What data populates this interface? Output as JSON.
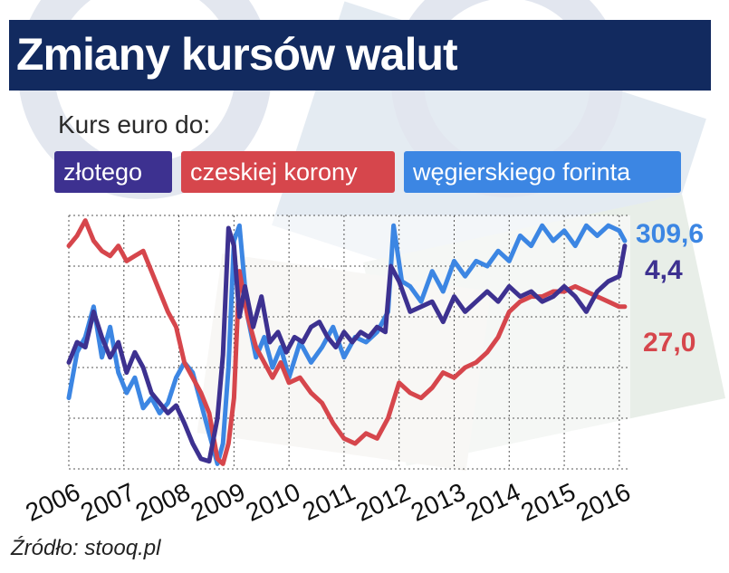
{
  "title": "Zmiany kursów walut",
  "subtitle": "Kurs euro do:",
  "source": "Źródło: stooq.pl",
  "colors": {
    "title_bg": "#122a5f",
    "pln": "#3d3190",
    "czk": "#d6464c",
    "huf": "#3c86e3",
    "grid": "#555555"
  },
  "legend": [
    {
      "key": "pln",
      "label": "złotego"
    },
    {
      "key": "czk",
      "label": "czeskiej korony"
    },
    {
      "key": "huf",
      "label": "węgierskiego forinta"
    }
  ],
  "end_labels": {
    "huf": "309,6",
    "pln": "4,4",
    "czk": "27,0"
  },
  "chart_data": {
    "type": "line",
    "x_ticks": [
      "2006",
      "2007",
      "2008",
      "2009",
      "2010",
      "2011",
      "2012",
      "2013",
      "2014",
      "2015",
      "2016"
    ],
    "xlim": [
      2006,
      2016.2
    ],
    "ylim": [
      0,
      100
    ],
    "y_axis": "no labels; relative scale, each series normalised to its own range",
    "grid": true,
    "legend_position": "top",
    "series": [
      {
        "name": "złotego",
        "color": "#3d3190",
        "end_value": "4,4",
        "x": [
          2006.0,
          2006.15,
          2006.3,
          2006.45,
          2006.6,
          2006.75,
          2006.9,
          2007.05,
          2007.2,
          2007.35,
          2007.5,
          2007.65,
          2007.8,
          2007.95,
          2008.1,
          2008.25,
          2008.4,
          2008.55,
          2008.7,
          2008.8,
          2008.9,
          2009.0,
          2009.1,
          2009.2,
          2009.35,
          2009.5,
          2009.65,
          2009.8,
          2009.95,
          2010.1,
          2010.25,
          2010.4,
          2010.55,
          2010.7,
          2010.85,
          2011.0,
          2011.15,
          2011.3,
          2011.45,
          2011.6,
          2011.75,
          2011.85,
          2012.0,
          2012.2,
          2012.4,
          2012.6,
          2012.8,
          2013.0,
          2013.2,
          2013.4,
          2013.6,
          2013.8,
          2014.0,
          2014.2,
          2014.4,
          2014.6,
          2014.8,
          2015.0,
          2015.2,
          2015.4,
          2015.6,
          2015.8,
          2016.0,
          2016.1
        ],
        "values": [
          42,
          50,
          48,
          62,
          52,
          44,
          50,
          38,
          46,
          40,
          30,
          26,
          22,
          25,
          18,
          10,
          4,
          3,
          20,
          45,
          95,
          88,
          60,
          72,
          56,
          68,
          50,
          54,
          46,
          52,
          50,
          56,
          58,
          52,
          48,
          54,
          50,
          54,
          52,
          56,
          54,
          80,
          74,
          62,
          64,
          66,
          58,
          68,
          62,
          66,
          70,
          66,
          72,
          68,
          70,
          66,
          68,
          72,
          68,
          62,
          70,
          74,
          76,
          88
        ]
      },
      {
        "name": "czeskiej korony",
        "color": "#d6464c",
        "end_value": "27,0",
        "x": [
          2006.0,
          2006.15,
          2006.3,
          2006.45,
          2006.6,
          2006.75,
          2006.9,
          2007.05,
          2007.2,
          2007.35,
          2007.5,
          2007.65,
          2007.8,
          2007.95,
          2008.1,
          2008.25,
          2008.4,
          2008.55,
          2008.7,
          2008.8,
          2008.9,
          2009.0,
          2009.1,
          2009.25,
          2009.4,
          2009.55,
          2009.7,
          2009.85,
          2010.0,
          2010.2,
          2010.4,
          2010.6,
          2010.8,
          2011.0,
          2011.2,
          2011.4,
          2011.6,
          2011.8,
          2012.0,
          2012.2,
          2012.4,
          2012.6,
          2012.8,
          2013.0,
          2013.2,
          2013.4,
          2013.6,
          2013.8,
          2014.0,
          2014.2,
          2014.4,
          2014.6,
          2014.8,
          2015.0,
          2015.2,
          2015.4,
          2015.6,
          2015.8,
          2016.0,
          2016.1
        ],
        "values": [
          88,
          92,
          98,
          90,
          86,
          84,
          88,
          82,
          84,
          86,
          78,
          70,
          62,
          56,
          42,
          36,
          30,
          22,
          4,
          2,
          10,
          28,
          78,
          60,
          48,
          42,
          36,
          42,
          34,
          36,
          30,
          26,
          18,
          12,
          10,
          14,
          12,
          20,
          34,
          30,
          28,
          32,
          38,
          36,
          40,
          42,
          46,
          52,
          62,
          66,
          68,
          68,
          70,
          70,
          72,
          70,
          68,
          66,
          64,
          64
        ]
      },
      {
        "name": "węgierskiego forinta",
        "color": "#3c86e3",
        "end_value": "309,6",
        "x": [
          2006.0,
          2006.15,
          2006.3,
          2006.45,
          2006.6,
          2006.75,
          2006.9,
          2007.05,
          2007.2,
          2007.35,
          2007.5,
          2007.65,
          2007.8,
          2007.95,
          2008.1,
          2008.25,
          2008.4,
          2008.55,
          2008.7,
          2008.8,
          2008.9,
          2009.0,
          2009.1,
          2009.25,
          2009.4,
          2009.55,
          2009.7,
          2009.85,
          2010.0,
          2010.2,
          2010.4,
          2010.6,
          2010.8,
          2011.0,
          2011.2,
          2011.4,
          2011.6,
          2011.8,
          2011.9,
          2012.05,
          2012.2,
          2012.4,
          2012.6,
          2012.8,
          2013.0,
          2013.2,
          2013.4,
          2013.6,
          2013.8,
          2014.0,
          2014.2,
          2014.4,
          2014.6,
          2014.8,
          2015.0,
          2015.2,
          2015.4,
          2015.6,
          2015.8,
          2016.0,
          2016.1
        ],
        "values": [
          28,
          46,
          52,
          64,
          44,
          56,
          38,
          30,
          36,
          24,
          28,
          22,
          26,
          36,
          42,
          38,
          26,
          14,
          2,
          10,
          40,
          90,
          96,
          60,
          44,
          52,
          40,
          48,
          36,
          50,
          42,
          48,
          56,
          44,
          52,
          50,
          54,
          62,
          96,
          74,
          72,
          66,
          78,
          70,
          82,
          76,
          82,
          80,
          86,
          82,
          92,
          88,
          96,
          90,
          94,
          88,
          96,
          92,
          96,
          94,
          90
        ]
      }
    ]
  }
}
